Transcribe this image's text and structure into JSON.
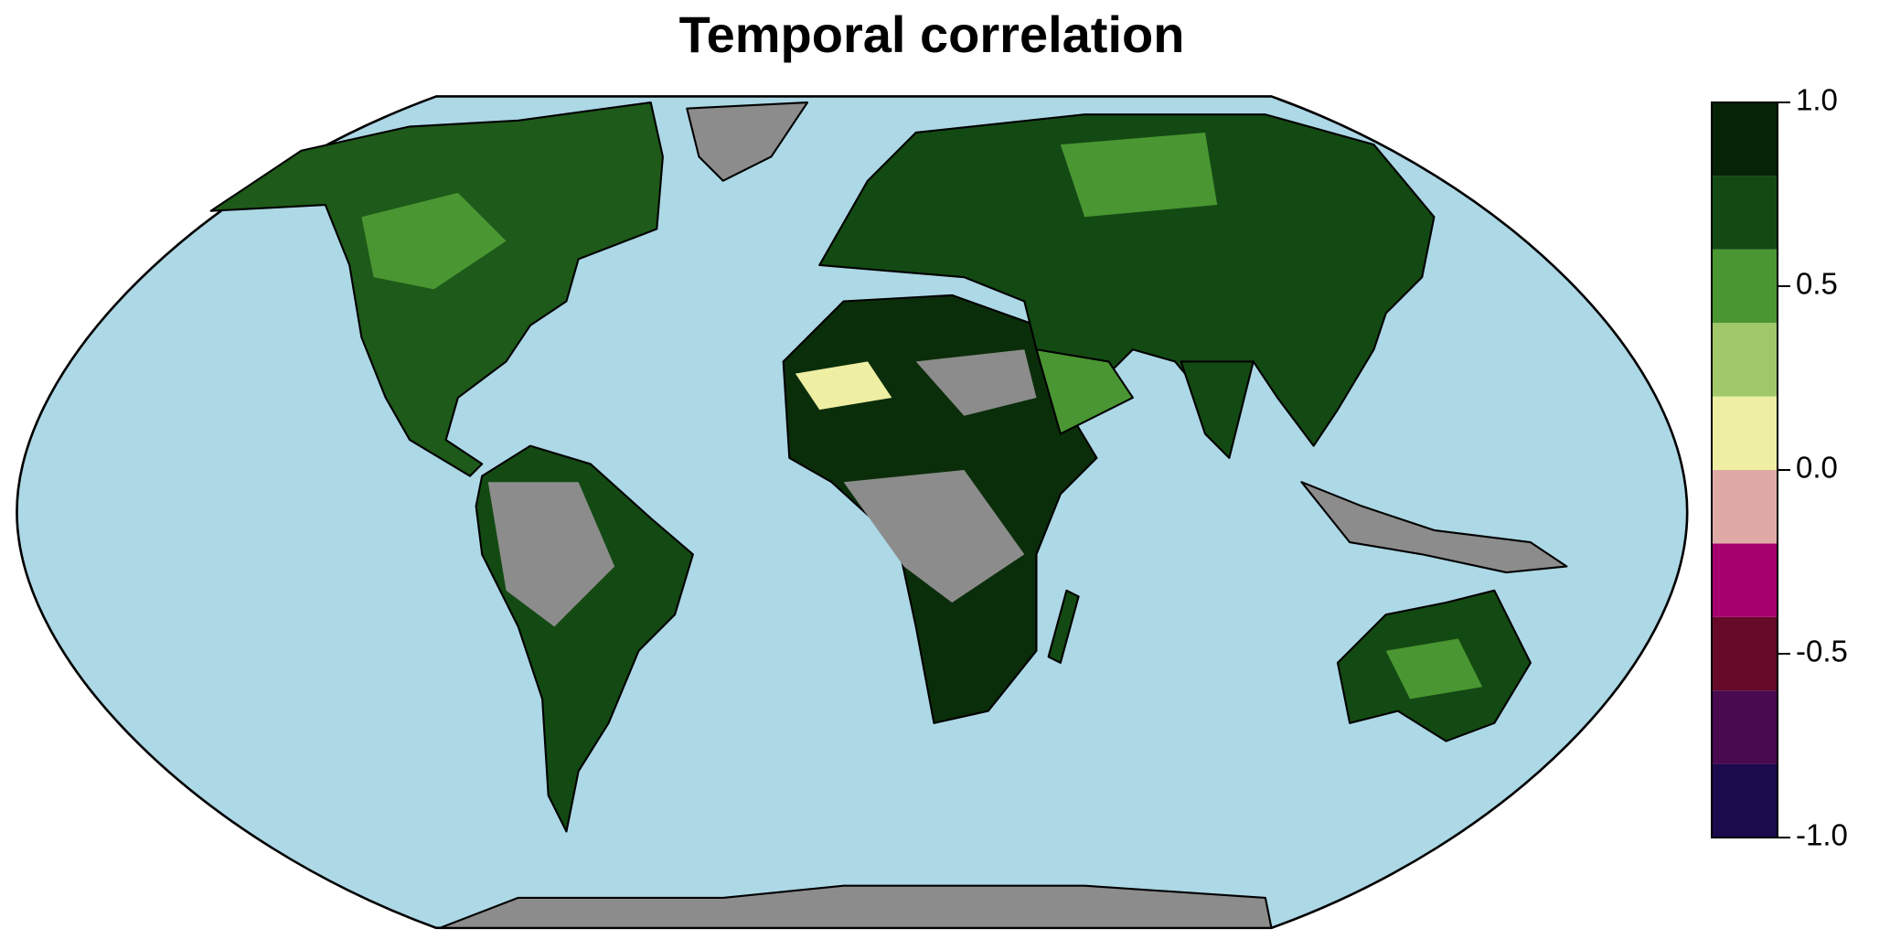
{
  "chart_data": {
    "type": "map",
    "title": "Temporal correlation",
    "colorbar": {
      "bins": [
        -1.0,
        -0.8,
        -0.6,
        -0.4,
        -0.2,
        0.0,
        0.2,
        0.4,
        0.6,
        0.8,
        1.0
      ],
      "colors": [
        "#1b0a4c",
        "#490a50",
        "#650a28",
        "#a6006e",
        "#dfaaa6",
        "#eeefa2",
        "#a0c86a",
        "#4a9632",
        "#134a13",
        "#062207"
      ],
      "lim": [
        -1.0,
        1.0
      ],
      "ticks": [
        {
          "value": 1.0,
          "label": "1.0"
        },
        {
          "value": 0.5,
          "label": "0.5"
        },
        {
          "value": 0.0,
          "label": "0.0"
        },
        {
          "value": -0.5,
          "label": "-0.5"
        },
        {
          "value": -1.0,
          "label": "-1.0"
        }
      ]
    }
  }
}
